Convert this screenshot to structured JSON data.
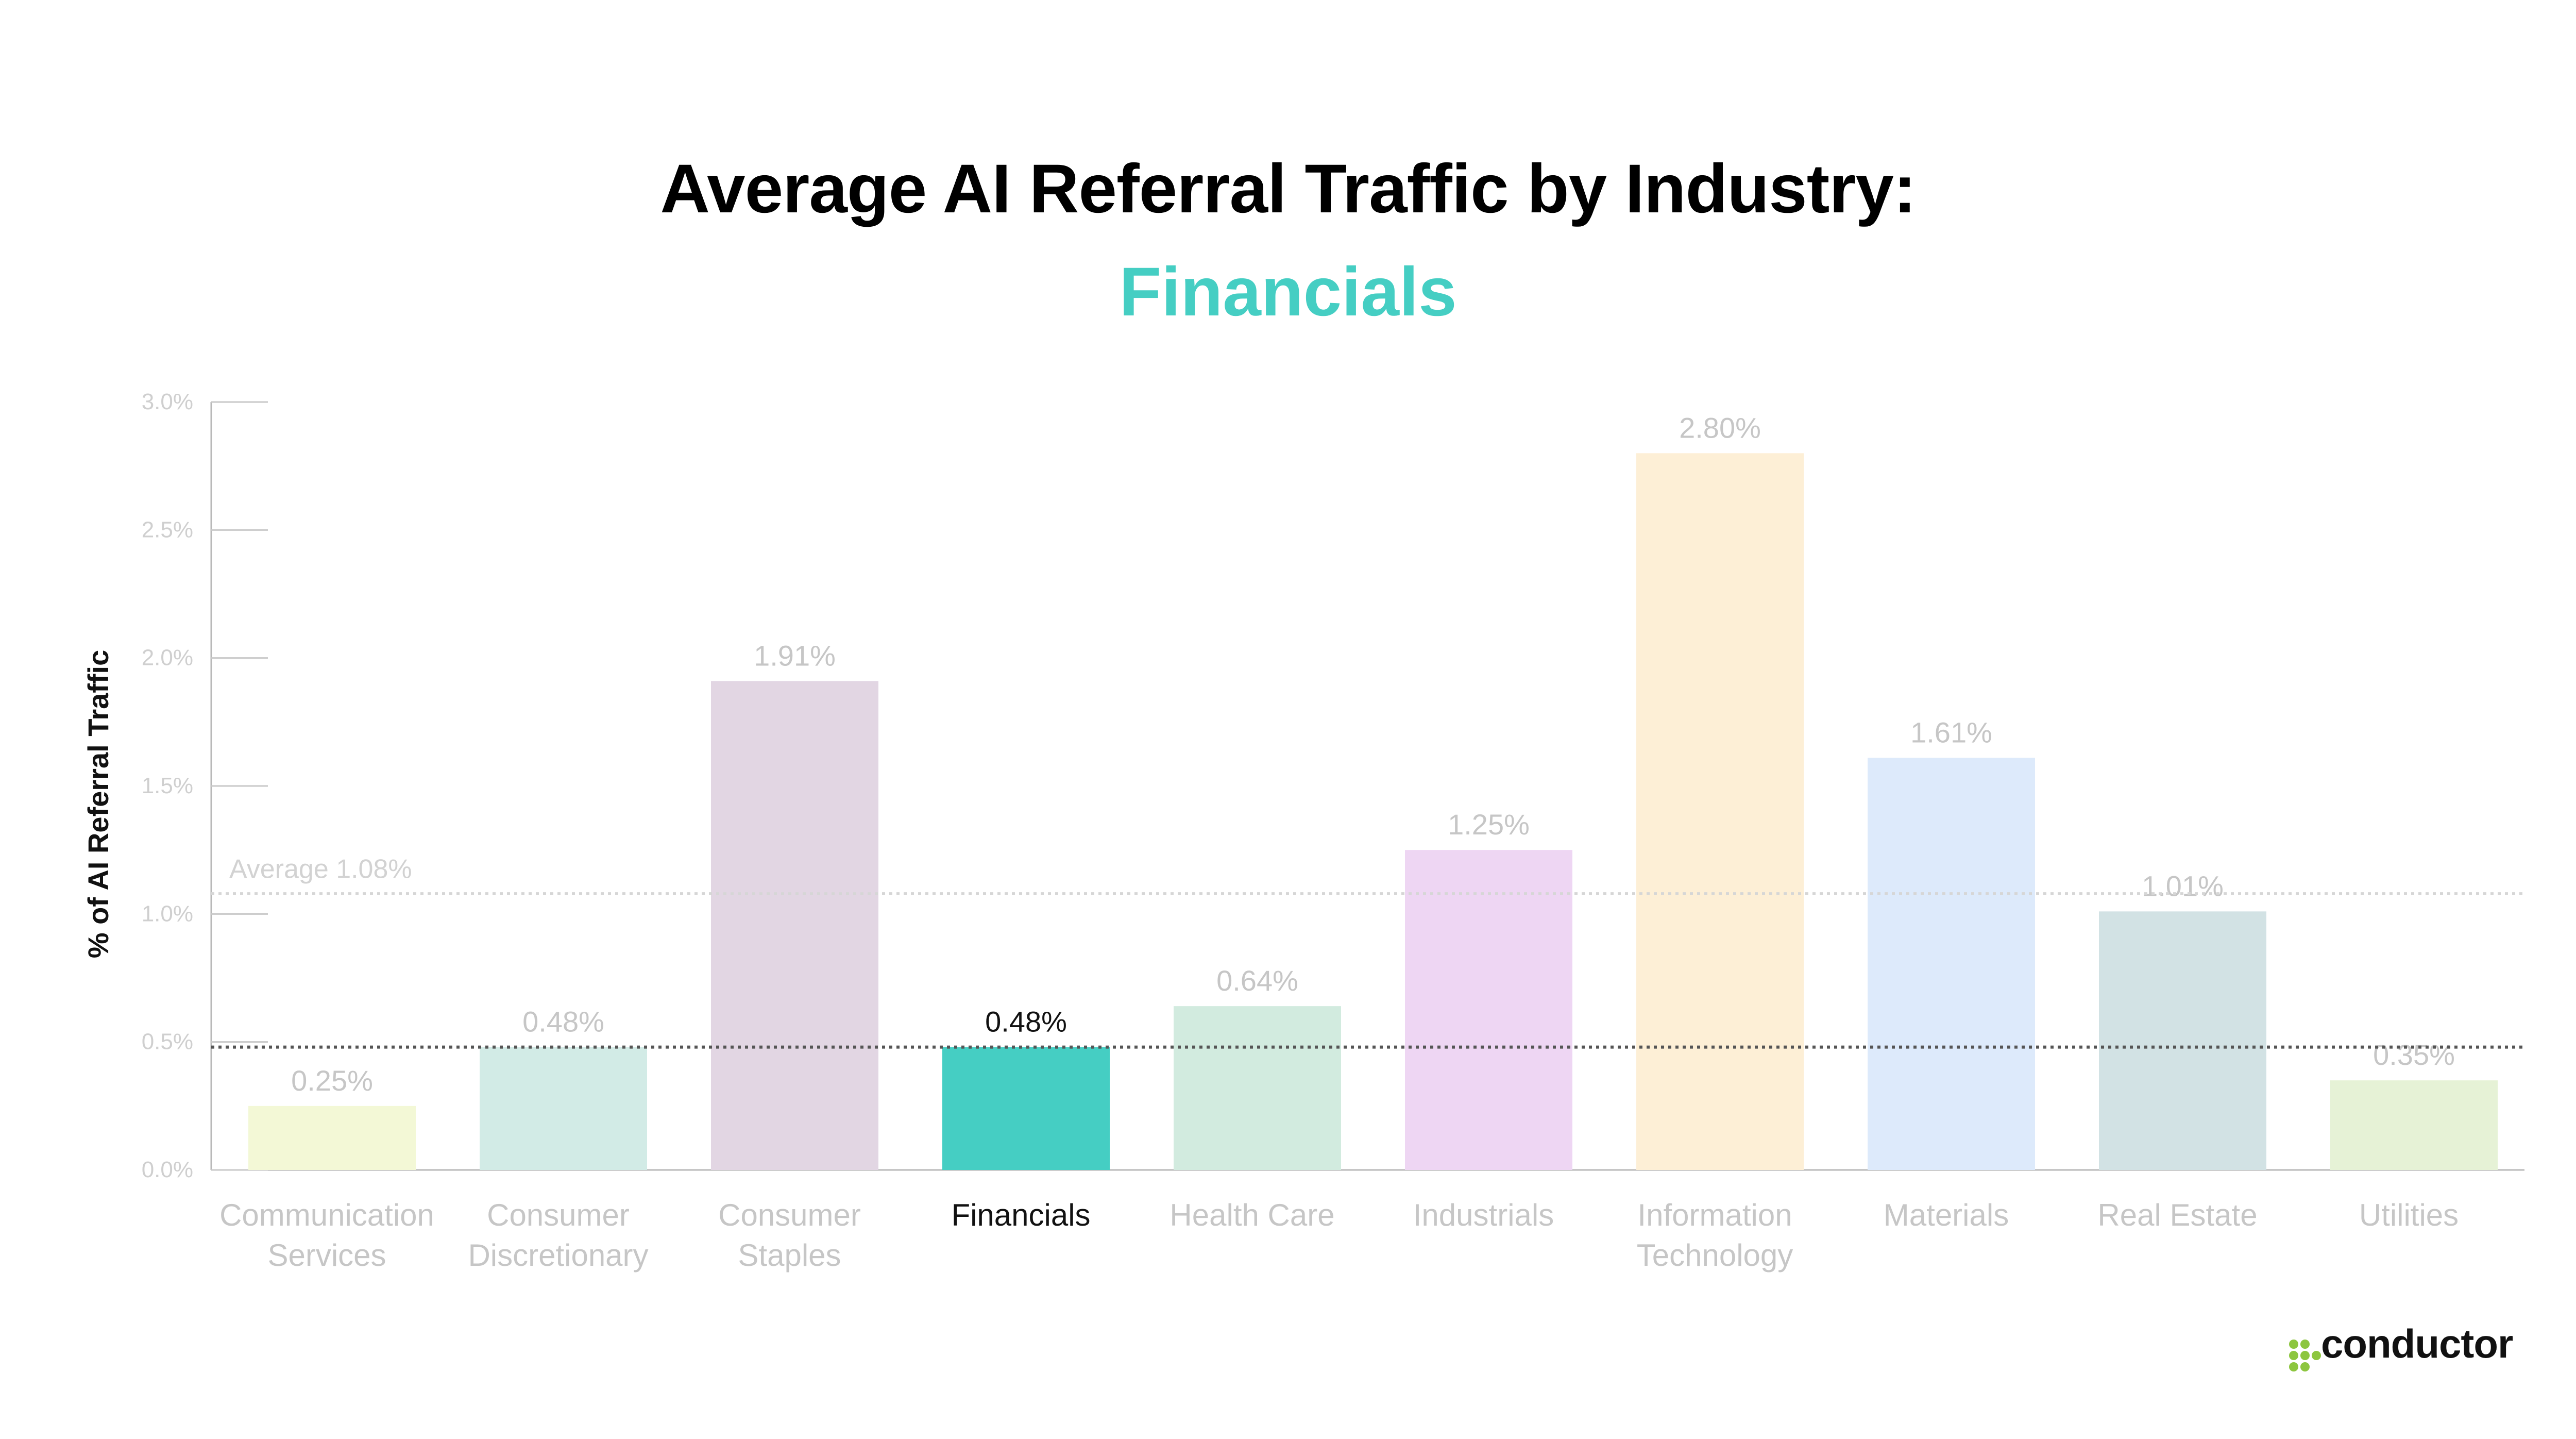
{
  "title": "Average AI Referral Traffic by Industry:",
  "subtitle": "Financials",
  "brand": {
    "name": "conductor",
    "icon": "conductor-dots-logo",
    "color": "#8DC63F"
  },
  "chart_data": {
    "type": "bar",
    "categories": [
      [
        "Communication",
        "Services"
      ],
      [
        "Consumer",
        "Discretionary"
      ],
      [
        "Consumer",
        "Staples"
      ],
      [
        "Financials"
      ],
      [
        "Health Care"
      ],
      [
        "Industrials"
      ],
      [
        "Information",
        "Technology"
      ],
      [
        "Materials"
      ],
      [
        "Real Estate"
      ],
      [
        "Utilities"
      ]
    ],
    "values": [
      0.25,
      0.48,
      1.91,
      0.48,
      0.64,
      1.25,
      2.8,
      1.61,
      1.01,
      0.35
    ],
    "value_labels": [
      "0.25%",
      "0.48%",
      "1.91%",
      "0.48%",
      "0.64%",
      "1.25%",
      "2.80%",
      "1.61%",
      "1.01%",
      "0.35%"
    ],
    "colors": [
      "#F3F8D6",
      "#D2EBE6",
      "#E2D6E3",
      "#45CEC3",
      "#D2EBDF",
      "#EED6F3",
      "#FDEFD6",
      "#DDEAFB",
      "#D2E2E4",
      "#E6F2D6"
    ],
    "highlight_index": 3,
    "ylabel": "% of AI Referral Traffic",
    "ylim": [
      0,
      3.0
    ],
    "yticks": [
      0,
      0.5,
      1.0,
      1.5,
      2.0,
      2.5,
      3.0
    ],
    "ytick_labels": [
      "0.0%",
      "0.5%",
      "1.0%",
      "1.5%",
      "2.0%",
      "2.5%",
      "3.0%"
    ],
    "average": {
      "value": 1.08,
      "label": "Average 1.08%"
    },
    "highlight_line": {
      "value": 0.48
    },
    "grid": false
  }
}
